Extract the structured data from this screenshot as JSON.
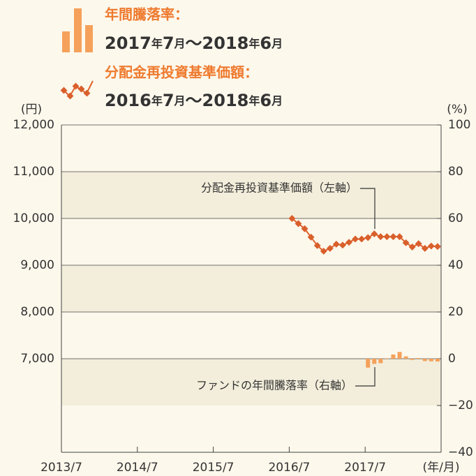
{
  "chart_data": {
    "type": "combo",
    "xlim": [
      "2013/7",
      "2018/7"
    ],
    "xticks": [
      "2013/7",
      "2014/7",
      "2015/7",
      "2016/7",
      "2017/7"
    ],
    "xlabel": "(年/月)",
    "ylabel": "(円)",
    "y2label": "(%)",
    "ylim": [
      5000,
      12000
    ],
    "yticks": [
      {
        "value": 7000,
        "label": "7,000"
      },
      {
        "value": 8000,
        "label": "8,000"
      },
      {
        "value": 9000,
        "label": "9,000"
      },
      {
        "value": 10000,
        "label": "10,000"
      },
      {
        "value": 11000,
        "label": "11,000"
      },
      {
        "value": 12000,
        "label": "12,000"
      }
    ],
    "y2lim": [
      -40,
      100
    ],
    "y2ticks": [
      {
        "value": -40,
        "label": "−40"
      },
      {
        "value": -20,
        "label": "−20"
      },
      0,
      20,
      40,
      60,
      80,
      100
    ],
    "grid": true,
    "series": [
      {
        "name": "年間騰落率：",
        "period": "2017年7月〜2018年6月",
        "type": "bar",
        "axis": "y2",
        "color": "#f5a15b",
        "annotation": "ファンドの年間騰落率（右軸）",
        "x": [
          "2017/7",
          "2017/8",
          "2017/9",
          "2017/10",
          "2017/11",
          "2017/12",
          "2018/1",
          "2018/2",
          "2018/3",
          "2018/4",
          "2018/5",
          "2018/6"
        ],
        "values": [
          -3.8,
          -2.2,
          -1.9,
          0.2,
          1.8,
          2.9,
          1.0,
          -0.5,
          0.3,
          -1.0,
          -1.1,
          -1.2
        ]
      },
      {
        "name": "分配金再投資基準価額：",
        "period": "2016年7月〜2018年6月",
        "type": "line",
        "color": "#e0622a",
        "annotation": "分配金再投資基準価額（左軸）",
        "x": [
          "2016/7",
          "2016/8",
          "2016/9",
          "2016/10",
          "2016/11",
          "2016/12",
          "2017/1",
          "2017/2",
          "2017/3",
          "2017/4",
          "2017/5",
          "2017/6",
          "2017/7",
          "2017/8",
          "2017/9",
          "2017/10",
          "2017/11",
          "2017/12",
          "2018/1",
          "2018/2",
          "2018/3",
          "2018/4",
          "2018/5",
          "2018/6"
        ],
        "values": [
          10000,
          9890,
          9780,
          9600,
          9420,
          9300,
          9360,
          9450,
          9430,
          9490,
          9560,
          9560,
          9590,
          9670,
          9610,
          9610,
          9610,
          9610,
          9480,
          9390,
          9460,
          9360,
          9410,
          9400
        ]
      }
    ]
  }
}
